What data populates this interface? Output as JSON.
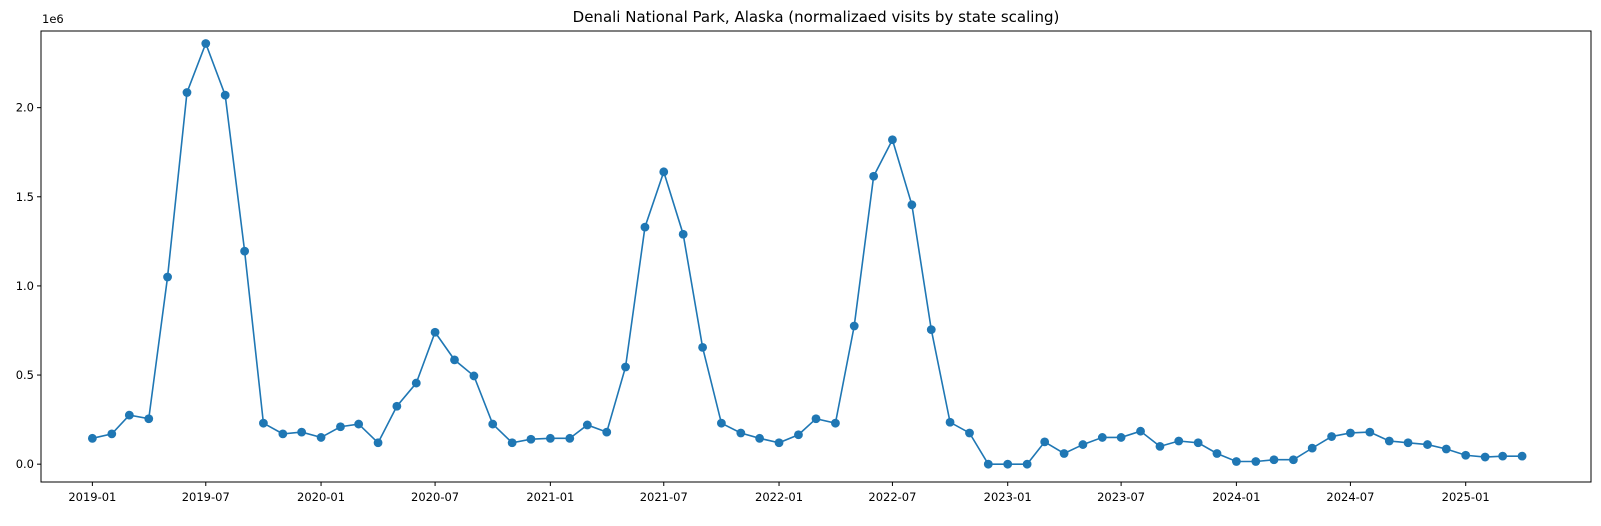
{
  "chart_data": {
    "type": "line",
    "title": "Denali National Park, Alaska (normalizaed visits by state scaling)",
    "xlabel": "",
    "ylabel": "",
    "y_offset_label": "1e6",
    "y_scale": 1000000,
    "ylim": [
      -0.1,
      2.43
    ],
    "xlim": [
      "2018-10-11",
      "2025-07-20"
    ],
    "grid": false,
    "legend": "none",
    "marker": "circle",
    "color": "#1f77b4",
    "x_ticks": [
      {
        "date": "2019-01-01",
        "label": "2019-01"
      },
      {
        "date": "2019-07-01",
        "label": "2019-07"
      },
      {
        "date": "2020-01-01",
        "label": "2020-01"
      },
      {
        "date": "2020-07-01",
        "label": "2020-07"
      },
      {
        "date": "2021-01-01",
        "label": "2021-01"
      },
      {
        "date": "2021-07-01",
        "label": "2021-07"
      },
      {
        "date": "2022-01-01",
        "label": "2022-01"
      },
      {
        "date": "2022-07-01",
        "label": "2022-07"
      },
      {
        "date": "2023-01-01",
        "label": "2023-01"
      },
      {
        "date": "2023-07-01",
        "label": "2023-07"
      },
      {
        "date": "2024-01-01",
        "label": "2024-01"
      },
      {
        "date": "2024-07-01",
        "label": "2024-07"
      },
      {
        "date": "2025-01-01",
        "label": "2025-01"
      }
    ],
    "y_ticks": [
      {
        "value": 0.0,
        "label": "0.0"
      },
      {
        "value": 0.5,
        "label": "0.5"
      },
      {
        "value": 1.0,
        "label": "1.0"
      },
      {
        "value": 1.5,
        "label": "1.5"
      },
      {
        "value": 2.0,
        "label": "2.0"
      }
    ],
    "series": [
      {
        "x": [
          "2019-01-01",
          "2019-02-01",
          "2019-03-01",
          "2019-04-01",
          "2019-05-01",
          "2019-06-01",
          "2019-07-01",
          "2019-08-01",
          "2019-09-01",
          "2019-10-01",
          "2019-11-01",
          "2019-12-01",
          "2020-01-01",
          "2020-02-01",
          "2020-03-01",
          "2020-04-01",
          "2020-05-01",
          "2020-06-01",
          "2020-07-01",
          "2020-08-01",
          "2020-09-01",
          "2020-10-01",
          "2020-11-01",
          "2020-12-01",
          "2021-01-01",
          "2021-02-01",
          "2021-03-01",
          "2021-04-01",
          "2021-05-01",
          "2021-06-01",
          "2021-07-01",
          "2021-08-01",
          "2021-09-01",
          "2021-10-01",
          "2021-11-01",
          "2021-12-01",
          "2022-01-01",
          "2022-02-01",
          "2022-03-01",
          "2022-04-01",
          "2022-05-01",
          "2022-06-01",
          "2022-07-01",
          "2022-08-01",
          "2022-09-01",
          "2022-10-01",
          "2022-11-01",
          "2022-12-01",
          "2023-01-01",
          "2023-02-01",
          "2023-03-01",
          "2023-04-01",
          "2023-05-01",
          "2023-06-01",
          "2023-07-01",
          "2023-08-01",
          "2023-09-01",
          "2023-10-01",
          "2023-11-01",
          "2023-12-01",
          "2024-01-01",
          "2024-02-01",
          "2024-03-01",
          "2024-04-01",
          "2024-05-01",
          "2024-06-01",
          "2024-07-01",
          "2024-08-01",
          "2024-09-01",
          "2024-10-01",
          "2024-11-01",
          "2024-12-01",
          "2025-01-01",
          "2025-02-01",
          "2025-03-01",
          "2025-04-01"
        ],
        "y": [
          0.145,
          0.17,
          0.275,
          0.255,
          1.05,
          2.085,
          2.36,
          2.07,
          1.195,
          0.23,
          0.17,
          0.18,
          0.15,
          0.21,
          0.225,
          0.12,
          0.325,
          0.455,
          0.74,
          0.585,
          0.495,
          0.225,
          0.12,
          0.14,
          0.145,
          0.145,
          0.22,
          0.18,
          0.545,
          1.33,
          1.64,
          1.29,
          0.655,
          0.23,
          0.175,
          0.145,
          0.12,
          0.165,
          0.255,
          0.23,
          0.775,
          1.615,
          1.82,
          1.455,
          0.755,
          0.235,
          0.175,
          0.0,
          0.0,
          0.0,
          0.125,
          0.06,
          0.11,
          0.15,
          0.15,
          0.185,
          0.1,
          0.13,
          0.12,
          0.06,
          0.015,
          0.015,
          0.025,
          0.025,
          0.09,
          0.155,
          0.175,
          0.18,
          0.13,
          0.12,
          0.11,
          0.085,
          0.05,
          0.04,
          0.045,
          0.045
        ]
      }
    ]
  }
}
